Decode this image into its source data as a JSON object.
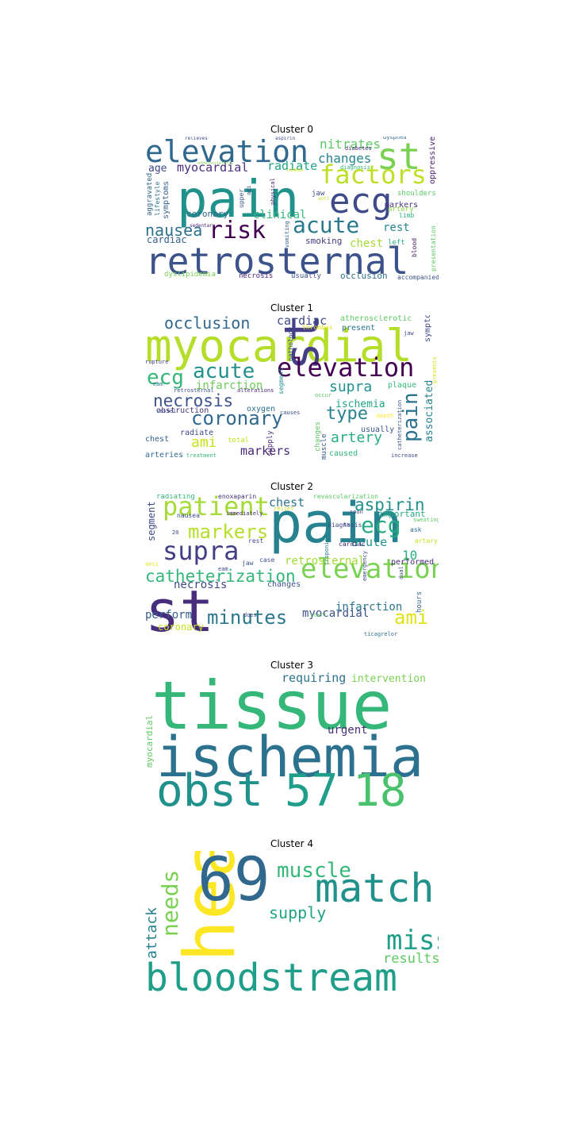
{
  "chart_data": [
    {
      "type": "wordcloud",
      "title": "Cluster 0",
      "words": [
        {
          "text": "pain",
          "size": 64,
          "color": "#21918c"
        },
        {
          "text": "retrosternal",
          "size": 46,
          "color": "#3b528b"
        },
        {
          "text": "elevation",
          "size": 38,
          "color": "#31688e"
        },
        {
          "text": "st",
          "size": 46,
          "color": "#7ad151"
        },
        {
          "text": "ecg",
          "size": 44,
          "color": "#3e4a89"
        },
        {
          "text": "factors",
          "size": 32,
          "color": "#bddf26"
        },
        {
          "text": "acute",
          "size": 28,
          "color": "#2a788e"
        },
        {
          "text": "risk",
          "size": 30,
          "color": "#440154"
        },
        {
          "text": "nausea",
          "size": 20,
          "color": "#2c728e"
        },
        {
          "text": "nitrates",
          "size": 16,
          "color": "#5ec962"
        },
        {
          "text": "changes",
          "size": 16,
          "color": "#26828e"
        },
        {
          "text": "myocardial",
          "size": 15,
          "color": "#472d7b"
        },
        {
          "text": "radiate",
          "size": 15,
          "color": "#20a486"
        },
        {
          "text": "age",
          "size": 13,
          "color": "#3e4989"
        },
        {
          "text": "clinical",
          "size": 14,
          "color": "#35b779"
        },
        {
          "text": "rest",
          "size": 14,
          "color": "#24868e"
        },
        {
          "text": "chest",
          "size": 14,
          "color": "#a5db36"
        },
        {
          "text": "cardiac",
          "size": 12,
          "color": "#355f8d"
        },
        {
          "text": "coronary",
          "size": 11,
          "color": "#31688e"
        },
        {
          "text": "smoking",
          "size": 11,
          "color": "#443a83"
        },
        {
          "text": "occlusion",
          "size": 11,
          "color": "#2d708e"
        },
        {
          "text": "markers",
          "size": 10,
          "color": "#46327e"
        },
        {
          "text": "oppressive",
          "size": 10,
          "color": "#481f70"
        },
        {
          "text": "symptoms",
          "size": 10,
          "color": "#355f8d"
        },
        {
          "text": "aggravated",
          "size": 9,
          "color": "#31688e"
        },
        {
          "text": "lifestyle",
          "size": 8,
          "color": "#2c728e"
        },
        {
          "text": "dyslipidemia",
          "size": 9,
          "color": "#75d054"
        },
        {
          "text": "necrosis",
          "size": 9,
          "color": "#482576"
        },
        {
          "text": "usually",
          "size": 9,
          "color": "#3b528b"
        },
        {
          "text": "accompanied",
          "size": 8,
          "color": "#3b528b"
        },
        {
          "text": "presentation",
          "size": 8,
          "color": "#5ec962"
        },
        {
          "text": "blood",
          "size": 8,
          "color": "#481467"
        },
        {
          "text": "left",
          "size": 9,
          "color": "#29af7f"
        },
        {
          "text": "artery",
          "size": 9,
          "color": "#8fd744"
        },
        {
          "text": "limb",
          "size": 8,
          "color": "#25ab82"
        },
        {
          "text": "shoulders",
          "size": 9,
          "color": "#5ec962"
        },
        {
          "text": "jaw",
          "size": 9,
          "color": "#3e4a89"
        },
        {
          "text": "vomiting",
          "size": 7,
          "color": "#355f8d"
        },
        {
          "text": "upper",
          "size": 8,
          "color": "#38588c"
        },
        {
          "text": "physical",
          "size": 7,
          "color": "#481a6c"
        },
        {
          "text": "ami",
          "size": 7,
          "color": "#3b528b"
        },
        {
          "text": "diagnosis",
          "size": 7,
          "color": "#2fb47c"
        },
        {
          "text": "diabetes",
          "size": 7,
          "color": "#472a7a"
        },
        {
          "text": "dyspnea",
          "size": 7,
          "color": "#31688e"
        },
        {
          "text": "aspirin",
          "size": 6,
          "color": "#3e4a89"
        },
        {
          "text": "relieves",
          "size": 6,
          "color": "#3e4a89"
        },
        {
          "text": "sedentary",
          "size": 6,
          "color": "#482878"
        },
        {
          "text": "anti",
          "size": 6,
          "color": "#bddf26"
        },
        {
          "text": "common",
          "size": 6,
          "color": "#c8e020"
        },
        {
          "text": "atherosclerotic",
          "size": 5,
          "color": "#7ad151"
        }
      ]
    },
    {
      "type": "wordcloud",
      "title": "Cluster 1",
      "words": [
        {
          "text": "myocardial",
          "size": 56,
          "color": "#b5de2b"
        },
        {
          "text": "st",
          "size": 60,
          "color": "#433e85"
        },
        {
          "text": "elevation",
          "size": 32,
          "color": "#440154"
        },
        {
          "text": "acute",
          "size": 26,
          "color": "#21918c"
        },
        {
          "text": "ecg",
          "size": 26,
          "color": "#35b779"
        },
        {
          "text": "coronary",
          "size": 24,
          "color": "#31688e"
        },
        {
          "text": "necrosis",
          "size": 21,
          "color": "#3b528b"
        },
        {
          "text": "occlusion",
          "size": 20,
          "color": "#31688e"
        },
        {
          "text": "pain",
          "size": 26,
          "color": "#2c728e"
        },
        {
          "text": "type",
          "size": 22,
          "color": "#26828e"
        },
        {
          "text": "supra",
          "size": 18,
          "color": "#21918c"
        },
        {
          "text": "ami",
          "size": 18,
          "color": "#c8e020"
        },
        {
          "text": "artery",
          "size": 18,
          "color": "#29af7f"
        },
        {
          "text": "markers",
          "size": 15,
          "color": "#482878"
        },
        {
          "text": "cardiac",
          "size": 15,
          "color": "#3e4a89"
        },
        {
          "text": "infarction",
          "size": 14,
          "color": "#6ccd5a"
        },
        {
          "text": "ischemia",
          "size": 13,
          "color": "#20a486"
        },
        {
          "text": "associated",
          "size": 13,
          "color": "#26828e"
        },
        {
          "text": "symptoms",
          "size": 10,
          "color": "#3e4a89"
        },
        {
          "text": "atherosclerotic",
          "size": 10,
          "color": "#5ec962"
        },
        {
          "text": "present",
          "size": 10,
          "color": "#2c728e"
        },
        {
          "text": "plaque",
          "size": 10,
          "color": "#35b779"
        },
        {
          "text": "usually",
          "size": 10,
          "color": "#39568c"
        },
        {
          "text": "caused",
          "size": 10,
          "color": "#2fb47c"
        },
        {
          "text": "oxygen",
          "size": 10,
          "color": "#2c728e"
        },
        {
          "text": "obstruction",
          "size": 10,
          "color": "#46327e"
        },
        {
          "text": "radiate",
          "size": 10,
          "color": "#3e4989"
        },
        {
          "text": "chest",
          "size": 10,
          "color": "#355f8d"
        },
        {
          "text": "arteries",
          "size": 10,
          "color": "#31688e"
        },
        {
          "text": "total",
          "size": 9,
          "color": "#c8e020"
        },
        {
          "text": "supply",
          "size": 9,
          "color": "#482576"
        },
        {
          "text": "changes",
          "size": 9,
          "color": "#5ec962"
        },
        {
          "text": "muscle",
          "size": 9,
          "color": "#38588c"
        },
        {
          "text": "pathology",
          "size": 8,
          "color": "#3e4a89"
        },
        {
          "text": "segment",
          "size": 8,
          "color": "#21918c"
        },
        {
          "text": "thrombus",
          "size": 8,
          "color": "#dfe318"
        },
        {
          "text": "jaw",
          "size": 7,
          "color": "#3e4a89"
        },
        {
          "text": "presents",
          "size": 7,
          "color": "#d8e219"
        },
        {
          "text": "rupture",
          "size": 7,
          "color": "#443a83"
        },
        {
          "text": "eam",
          "size": 7,
          "color": "#2a788e"
        },
        {
          "text": "retrosternal",
          "size": 7,
          "color": "#3b528b"
        },
        {
          "text": "alterations",
          "size": 7,
          "color": "#482878"
        },
        {
          "text": "vessel",
          "size": 7,
          "color": "#3b528b"
        },
        {
          "text": "causes",
          "size": 7,
          "color": "#3b528b"
        },
        {
          "text": "occur",
          "size": 7,
          "color": "#5ec962"
        },
        {
          "text": "death",
          "size": 7,
          "color": "#fde725"
        },
        {
          "text": "catheterization",
          "size": 7,
          "color": "#3b528b"
        },
        {
          "text": "increase",
          "size": 7,
          "color": "#3e4a89"
        },
        {
          "text": "treatment",
          "size": 7,
          "color": "#35b779"
        }
      ]
    },
    {
      "type": "wordcloud",
      "title": "Cluster 2",
      "words": [
        {
          "text": "st",
          "size": 72,
          "color": "#472d7b"
        },
        {
          "text": "pain",
          "size": 70,
          "color": "#26828e"
        },
        {
          "text": "elevation",
          "size": 34,
          "color": "#7ad151"
        },
        {
          "text": "supra",
          "size": 32,
          "color": "#433e85"
        },
        {
          "text": "patient",
          "size": 32,
          "color": "#a5db36"
        },
        {
          "text": "markers",
          "size": 24,
          "color": "#b5de2b"
        },
        {
          "text": "catheterization",
          "size": 21,
          "color": "#35b779"
        },
        {
          "text": "minutes",
          "size": 24,
          "color": "#2a788e"
        },
        {
          "text": "ami",
          "size": 24,
          "color": "#dfe318"
        },
        {
          "text": "ecg",
          "size": 28,
          "color": "#25ab82"
        },
        {
          "text": "aspirin",
          "size": 21,
          "color": "#21918c"
        },
        {
          "text": "chest",
          "size": 15,
          "color": "#2c728e"
        },
        {
          "text": "acute",
          "size": 15,
          "color": "#21918c"
        },
        {
          "text": "10",
          "size": 16,
          "color": "#29af7f"
        },
        {
          "text": "necrosis",
          "size": 14,
          "color": "#3e4989"
        },
        {
          "text": "retrosternal",
          "size": 14,
          "color": "#a5db36"
        },
        {
          "text": "infarction",
          "size": 14,
          "color": "#2a788e"
        },
        {
          "text": "myocardial",
          "size": 14,
          "color": "#3b528b"
        },
        {
          "text": "perform",
          "size": 14,
          "color": "#355f8d"
        },
        {
          "text": "coronary",
          "size": 12,
          "color": "#c8e020"
        },
        {
          "text": "segment",
          "size": 12,
          "color": "#3e4a89"
        },
        {
          "text": "important",
          "size": 11,
          "color": "#25ab82"
        },
        {
          "text": "performed",
          "size": 10,
          "color": "#472d7b"
        },
        {
          "text": "changes",
          "size": 10,
          "color": "#3b528b"
        },
        {
          "text": "hours",
          "size": 9,
          "color": "#31688e"
        },
        {
          "text": "radiating",
          "size": 9,
          "color": "#35b779"
        },
        {
          "text": "enoxaparin",
          "size": 8,
          "color": "#46327e"
        },
        {
          "text": "revascularization",
          "size": 8,
          "color": "#5ec962"
        },
        {
          "text": "nausea",
          "size": 8,
          "color": "#3e4a89"
        },
        {
          "text": "immediately",
          "size": 7,
          "color": "#482878"
        },
        {
          "text": "relief",
          "size": 7,
          "color": "#c8e020"
        },
        {
          "text": "soon",
          "size": 7,
          "color": "#3e4a89"
        },
        {
          "text": "sweating",
          "size": 7,
          "color": "#5ec962"
        },
        {
          "text": "diagnosis",
          "size": 8,
          "color": "#3e4a89"
        },
        {
          "text": "ask",
          "size": 8,
          "color": "#31688e"
        },
        {
          "text": "troponins",
          "size": 7,
          "color": "#2a788e"
        },
        {
          "text": "cardiac",
          "size": 8,
          "color": "#482576"
        },
        {
          "text": "artery",
          "size": 8,
          "color": "#c8e020"
        },
        {
          "text": "20",
          "size": 7,
          "color": "#3e4a89"
        },
        {
          "text": "rest",
          "size": 8,
          "color": "#3e4a89"
        },
        {
          "text": "anti",
          "size": 7,
          "color": "#dfe318"
        },
        {
          "text": "jaw",
          "size": 8,
          "color": "#3b528b"
        },
        {
          "text": "eam",
          "size": 7,
          "color": "#3e4a89"
        },
        {
          "text": "case",
          "size": 8,
          "color": "#3b528b"
        },
        {
          "text": "tx",
          "size": 7,
          "color": "#3e4a89"
        },
        {
          "text": "emergency",
          "size": 7,
          "color": "#3e4a89"
        },
        {
          "text": "dual",
          "size": 7,
          "color": "#3e4a89"
        },
        {
          "text": "does",
          "size": 7,
          "color": "#3e4a89"
        },
        {
          "text": "start",
          "size": 7,
          "color": "#5ec962"
        },
        {
          "text": "ticagrelor",
          "size": 7,
          "color": "#2c728e"
        }
      ]
    },
    {
      "type": "wordcloud",
      "title": "Cluster 3",
      "words": [
        {
          "text": "tissue",
          "size": 84,
          "color": "#35b779"
        },
        {
          "text": "ischemia",
          "size": 70,
          "color": "#2c728e"
        },
        {
          "text": "obst",
          "size": 56,
          "color": "#21918c"
        },
        {
          "text": "57",
          "size": 56,
          "color": "#1f9e89"
        },
        {
          "text": "18",
          "size": 56,
          "color": "#4ac16d"
        },
        {
          "text": "requiring",
          "size": 15,
          "color": "#2c728e"
        },
        {
          "text": "intervention",
          "size": 13,
          "color": "#7ad151"
        },
        {
          "text": "urgent",
          "size": 14,
          "color": "#472d7b"
        },
        {
          "text": "myocardial",
          "size": 11,
          "color": "#5ec962"
        }
      ]
    },
    {
      "type": "wordcloud",
      "title": "Cluster 4",
      "words": [
        {
          "text": "heart",
          "size": 88,
          "color": "#fde725"
        },
        {
          "text": "69",
          "size": 76,
          "color": "#31688e"
        },
        {
          "text": "match",
          "size": 50,
          "color": "#21918c"
        },
        {
          "text": "bloodstream",
          "size": 48,
          "color": "#1f9e89"
        },
        {
          "text": "muscle",
          "size": 26,
          "color": "#35b779"
        },
        {
          "text": "needs",
          "size": 28,
          "color": "#7ad151"
        },
        {
          "text": "miss",
          "size": 34,
          "color": "#1f9e89"
        },
        {
          "text": "supply",
          "size": 20,
          "color": "#20a486"
        },
        {
          "text": "attack",
          "size": 18,
          "color": "#26828e"
        },
        {
          "text": "results",
          "size": 17,
          "color": "#5ec962"
        }
      ]
    }
  ]
}
